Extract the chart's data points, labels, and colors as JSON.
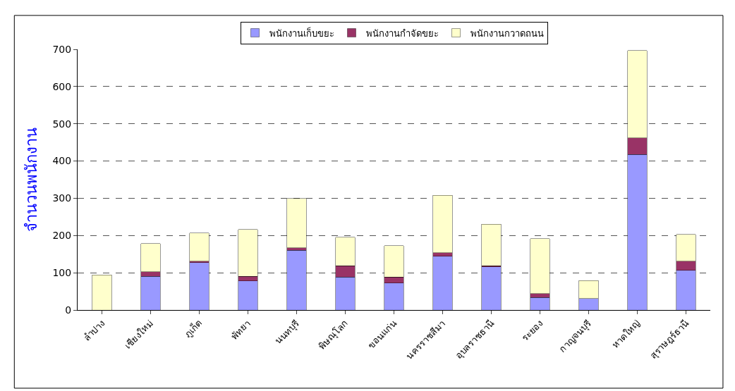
{
  "chart_data": {
    "type": "bar",
    "stacked": true,
    "ylabel": "จำนวนพนักงาน",
    "categories": [
      "ลำปาง",
      "เชียงใหม่",
      "ภูเก็ต",
      "พัทยา",
      "นนทบุรี",
      "พิษณุโลก",
      "ขอนแก่น",
      "นครราชสีมา",
      "อุบลราชธานี",
      "ระยอง",
      "กาญจนบุรี",
      "หาดใหญ่",
      "สุราษฎร์ธานี"
    ],
    "series": [
      {
        "name": "พนักงานเก็บขยะ",
        "color": "#9999ff",
        "values": [
          0,
          90,
          127,
          78,
          160,
          88,
          72,
          144,
          116,
          34,
          31,
          418,
          106
        ]
      },
      {
        "name": "พนักงานกำจัดขยะ",
        "color": "#993366",
        "values": [
          0,
          13,
          4,
          12,
          7,
          31,
          16,
          10,
          3,
          10,
          0,
          44,
          25
        ]
      },
      {
        "name": "พนักงานกวาดถนน",
        "color": "#ffffcc",
        "values": [
          94,
          75,
          76,
          126,
          132,
          76,
          85,
          154,
          111,
          148,
          48,
          235,
          72
        ]
      }
    ],
    "ylim": [
      0,
      700
    ],
    "yticks": [
      0,
      100,
      200,
      300,
      400,
      500,
      600,
      700
    ],
    "grid": "y",
    "legend": "top"
  }
}
